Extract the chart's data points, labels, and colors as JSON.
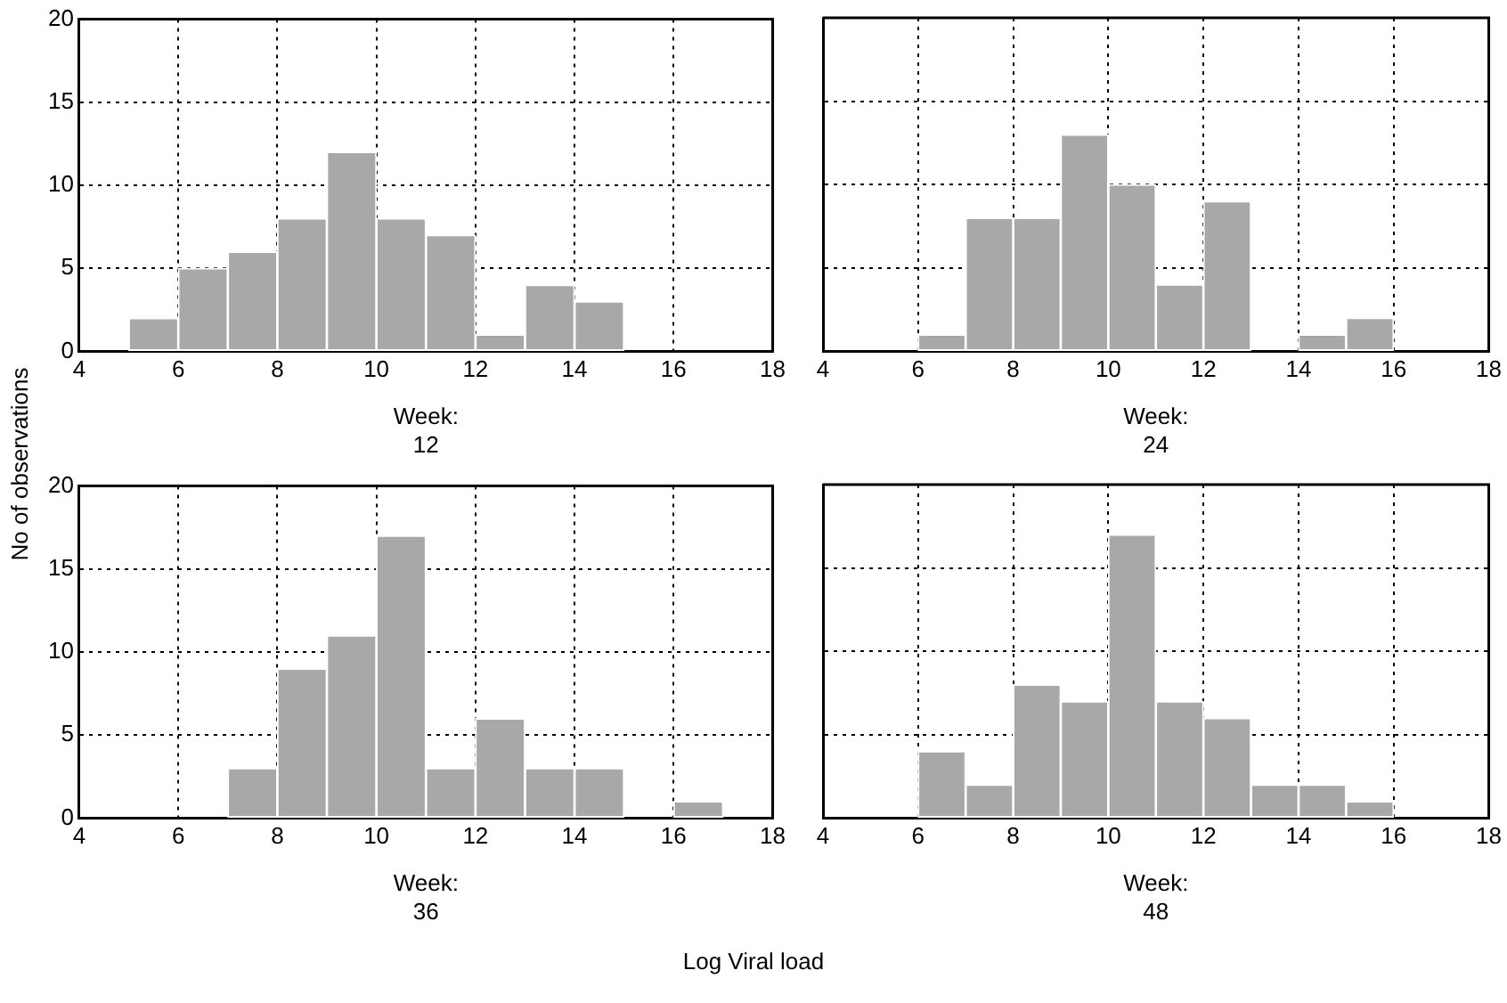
{
  "chart_data": [
    {
      "type": "histogram",
      "xlabel": "Week:\n12",
      "ylabel": "No of observations",
      "bins": [
        5,
        6,
        7,
        8,
        9,
        10,
        11,
        12,
        13,
        14,
        15,
        16,
        17
      ],
      "values": [
        2,
        5,
        6,
        8,
        12,
        8,
        7,
        1,
        4,
        3,
        0,
        0
      ],
      "color": "#a8a8a8",
      "xlim": [
        4,
        18
      ],
      "xticks": [
        4,
        6,
        8,
        10,
        12,
        14,
        16,
        18
      ],
      "ylim": [
        0,
        20
      ],
      "yticks": [
        0,
        5,
        10,
        15,
        20
      ],
      "grid": true,
      "line_style": "dotted"
    },
    {
      "type": "histogram",
      "xlabel": "Week:\n24",
      "bins": [
        5,
        6,
        7,
        8,
        9,
        10,
        11,
        12,
        13,
        14,
        15,
        16,
        17
      ],
      "values": [
        0,
        1,
        8,
        8,
        13,
        10,
        4,
        9,
        0,
        1,
        2,
        0
      ],
      "color": "#a8a8a8",
      "xlim": [
        4,
        18
      ],
      "xticks": [
        4,
        6,
        8,
        10,
        12,
        14,
        16,
        18
      ],
      "ylim": [
        0,
        20
      ],
      "yticks": [
        0,
        5,
        10,
        15,
        20
      ],
      "grid": true,
      "line_style": "dotted",
      "tick_labels": "x"
    },
    {
      "type": "histogram",
      "xlabel": "Week:\n36",
      "bins": [
        5,
        6,
        7,
        8,
        9,
        10,
        11,
        12,
        13,
        14,
        15,
        16,
        17
      ],
      "values": [
        0,
        0,
        3,
        9,
        11,
        17,
        3,
        6,
        3,
        3,
        0,
        1
      ],
      "color": "#a8a8a8",
      "xlim": [
        4,
        18
      ],
      "xticks": [
        4,
        6,
        8,
        10,
        12,
        14,
        16,
        18
      ],
      "ylim": [
        0,
        20
      ],
      "yticks": [
        0,
        5,
        10,
        15,
        20
      ],
      "grid": true,
      "line_style": "dotted",
      "annotations": [
        "Log Viral load"
      ]
    },
    {
      "type": "histogram",
      "xlabel": "Week:\n48",
      "bins": [
        5,
        6,
        7,
        8,
        9,
        10,
        11,
        12,
        13,
        14,
        15,
        16,
        17
      ],
      "values": [
        0,
        4,
        2,
        8,
        7,
        17,
        7,
        6,
        2,
        2,
        1,
        0
      ],
      "color": "#a8a8a8",
      "xlim": [
        4,
        18
      ],
      "xticks": [
        4,
        6,
        8,
        10,
        12,
        14,
        16,
        18
      ],
      "ylim": [
        0,
        20
      ],
      "yticks": [
        0,
        5,
        10,
        15,
        20
      ],
      "grid": true,
      "line_style": "dotted",
      "tick_labels": "x"
    }
  ]
}
